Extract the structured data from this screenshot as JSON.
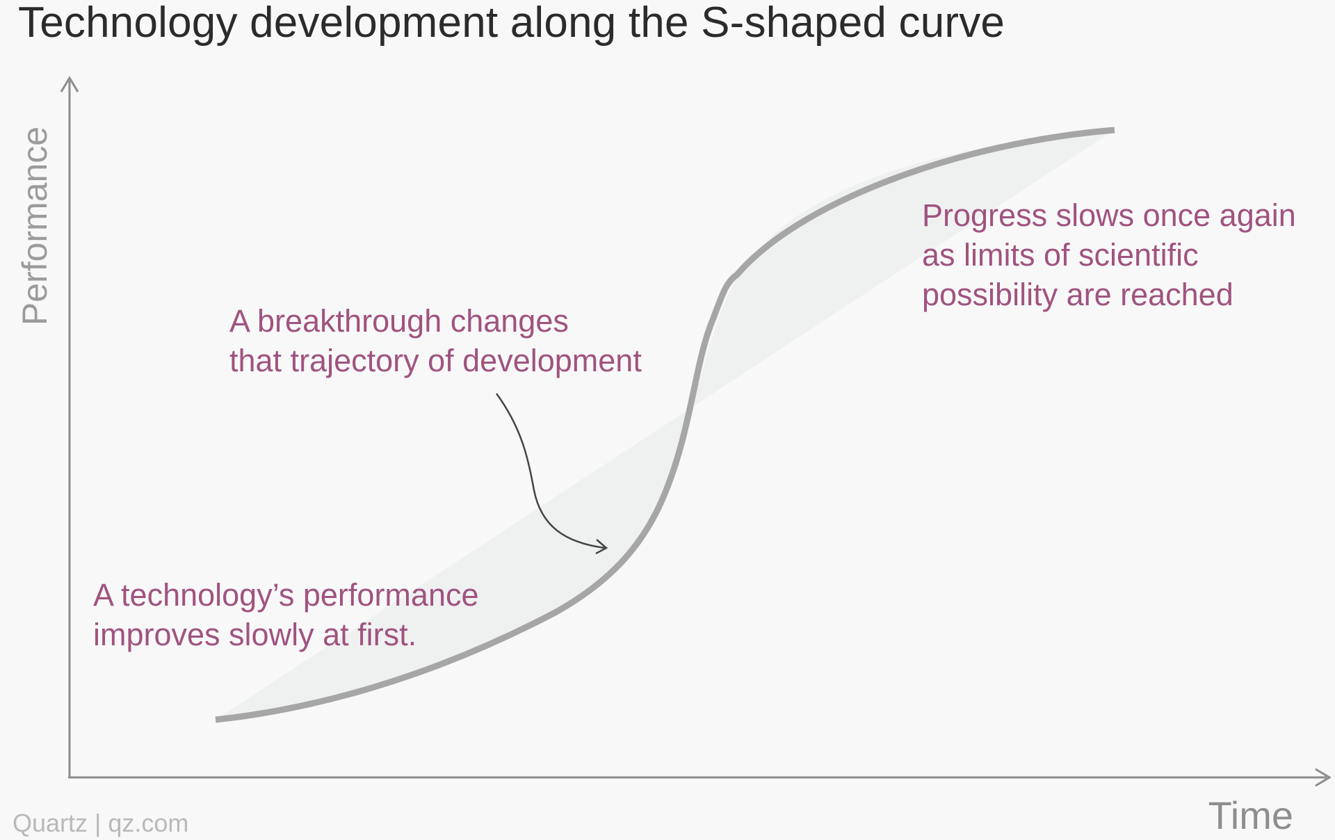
{
  "title": "Technology development along the S-shaped curve",
  "axes": {
    "y_label": "Performance",
    "x_label": "Time"
  },
  "annotations": {
    "breakthrough": "A breakthrough changes\nthat trajectory of development",
    "slow_start": "A technology’s performance\nimproves slowly at first.",
    "slows_again": "Progress slows once again\nas limits of scientific\npossibility are reached"
  },
  "source": "Quartz | qz.com",
  "colors": {
    "background": "#f8f8f8",
    "title": "#2b2b2b",
    "annotation": "#a0537f",
    "curve": "#a6a6a6",
    "curve_fill": "#eff1f1",
    "axis": "#8c8c8c",
    "arrow": "#444444"
  }
}
